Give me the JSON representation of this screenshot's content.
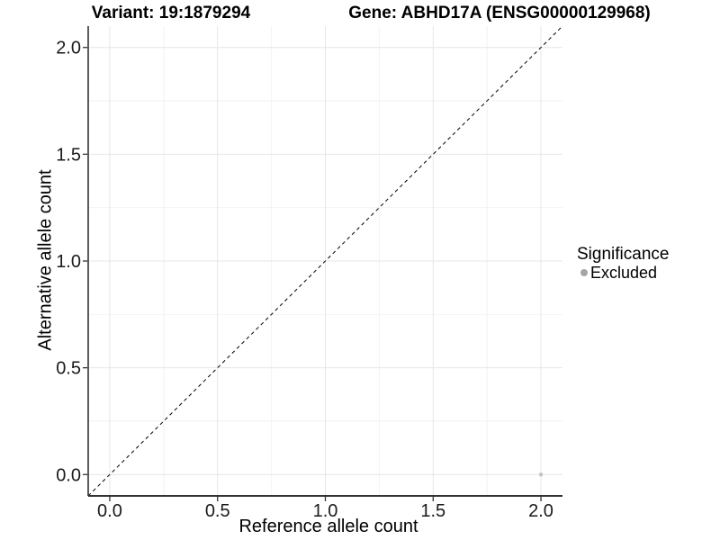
{
  "chart_data": {
    "type": "scatter",
    "title_left": "Variant: 19:1879294",
    "title_right": "Gene: ABHD17A (ENSG00000129968)",
    "xlabel": "Reference allele count",
    "ylabel": "Alternative allele count",
    "xlim": [
      -0.1,
      2.1
    ],
    "ylim": [
      -0.1,
      2.1
    ],
    "xticks": [
      0,
      0.5,
      1,
      1.5,
      2
    ],
    "xtick_labels": [
      "0.0",
      "0.5",
      "1.0",
      "1.5",
      "2.0"
    ],
    "yticks": [
      0,
      0.5,
      1,
      1.5,
      2
    ],
    "ytick_labels": [
      "0.0",
      "0.5",
      "1.0",
      "1.5",
      "2.0"
    ],
    "xticks_minor": [
      0.25,
      0.75,
      1.25,
      1.75
    ],
    "yticks_minor": [
      0.25,
      0.75,
      1.25,
      1.75
    ],
    "grid": {
      "major_color": "#e6e6e6",
      "minor_color": "#f2f2f2"
    },
    "axis_line_color": "#333333",
    "reference_line": {
      "type": "identity y=x",
      "from": [
        -0.1,
        -0.1
      ],
      "to": [
        2.1,
        2.1
      ],
      "style": "dashed",
      "color": "#000000"
    },
    "series": [
      {
        "name": "Excluded",
        "color": "#c3c3c3",
        "points": [
          {
            "x": 2.0,
            "y": 0.0
          }
        ]
      }
    ],
    "legend": {
      "position": "right",
      "title": "Significance",
      "items": [
        {
          "label": "Excluded",
          "color": "#a6a6a6"
        }
      ]
    }
  }
}
